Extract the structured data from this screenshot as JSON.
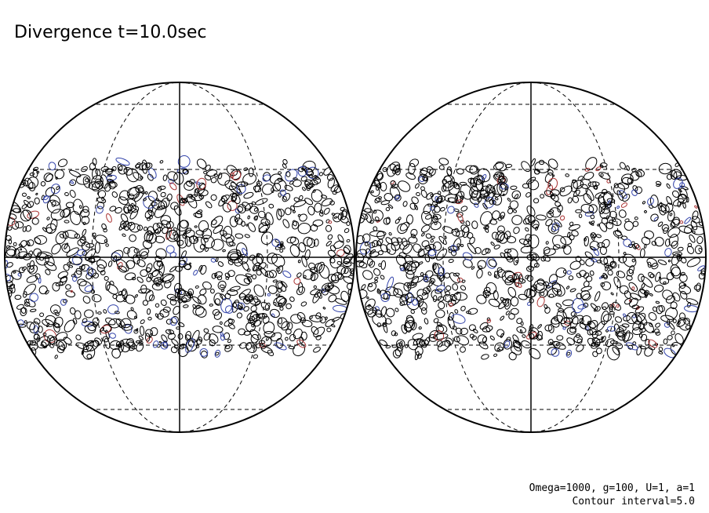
{
  "title": "Divergence t=10.0sec",
  "footer": {
    "parameters": "Omega=1000, g=100, U=1, a=1",
    "contour": "Contour interval=5.0"
  }
}
